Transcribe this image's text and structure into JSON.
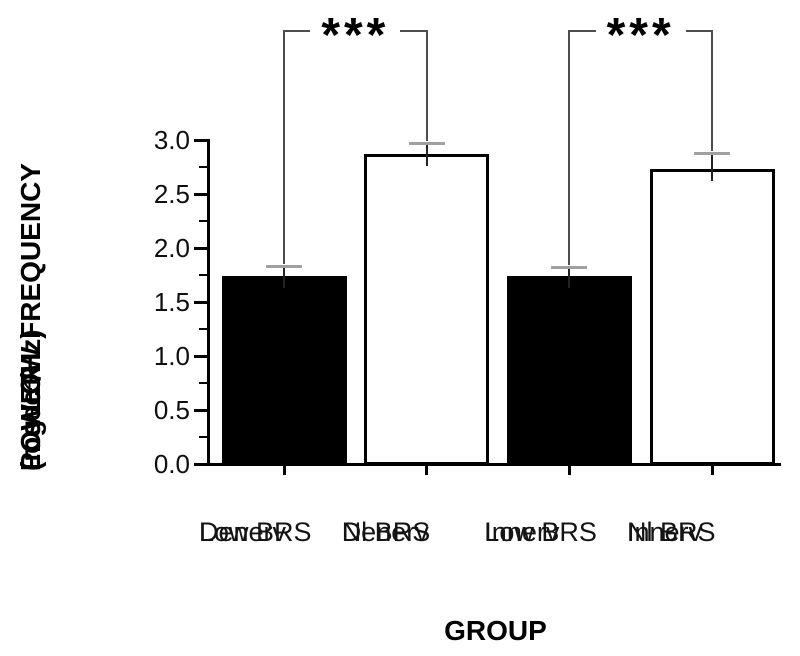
{
  "chart_data": {
    "type": "bar",
    "categories": [
      {
        "line1": "Denerv",
        "line2": "Low BRS"
      },
      {
        "line1": "Denerv",
        "line2": "Nl BRS"
      },
      {
        "line1": "Innerv",
        "line2": "Low BRS"
      },
      {
        "line1": "Innerv",
        "line2": "Nl BRS"
      }
    ],
    "values": [
      1.74,
      2.87,
      1.74,
      2.73
    ],
    "errors": [
      0.09,
      0.1,
      0.08,
      0.15
    ],
    "bar_colors": [
      "#000000",
      "#ffffff",
      "#000000",
      "#ffffff"
    ],
    "title": "",
    "xlabel": "GROUP",
    "ylabel_lines": [
      "Log LOW FREQUENCY",
      "POWER",
      "(msec²/Hz)"
    ],
    "ylim": [
      0,
      3
    ],
    "y_tick_labels": [
      "0.0",
      "0.5",
      "1.0",
      "1.5",
      "2.0",
      "2.5",
      "3.0"
    ],
    "y_minor_step": 0.25,
    "grid": "off",
    "legend": "none",
    "significance": [
      {
        "between": [
          0,
          1
        ],
        "label": "***"
      },
      {
        "between": [
          2,
          3
        ],
        "label": "***"
      }
    ]
  },
  "colors": {
    "bar_edge": "#000000",
    "error_cap": "#a0a0a0",
    "error_whisker": "#222222",
    "bracket": "#4d4d4d",
    "text": "#0f0f0f",
    "background": "#ffffff"
  }
}
